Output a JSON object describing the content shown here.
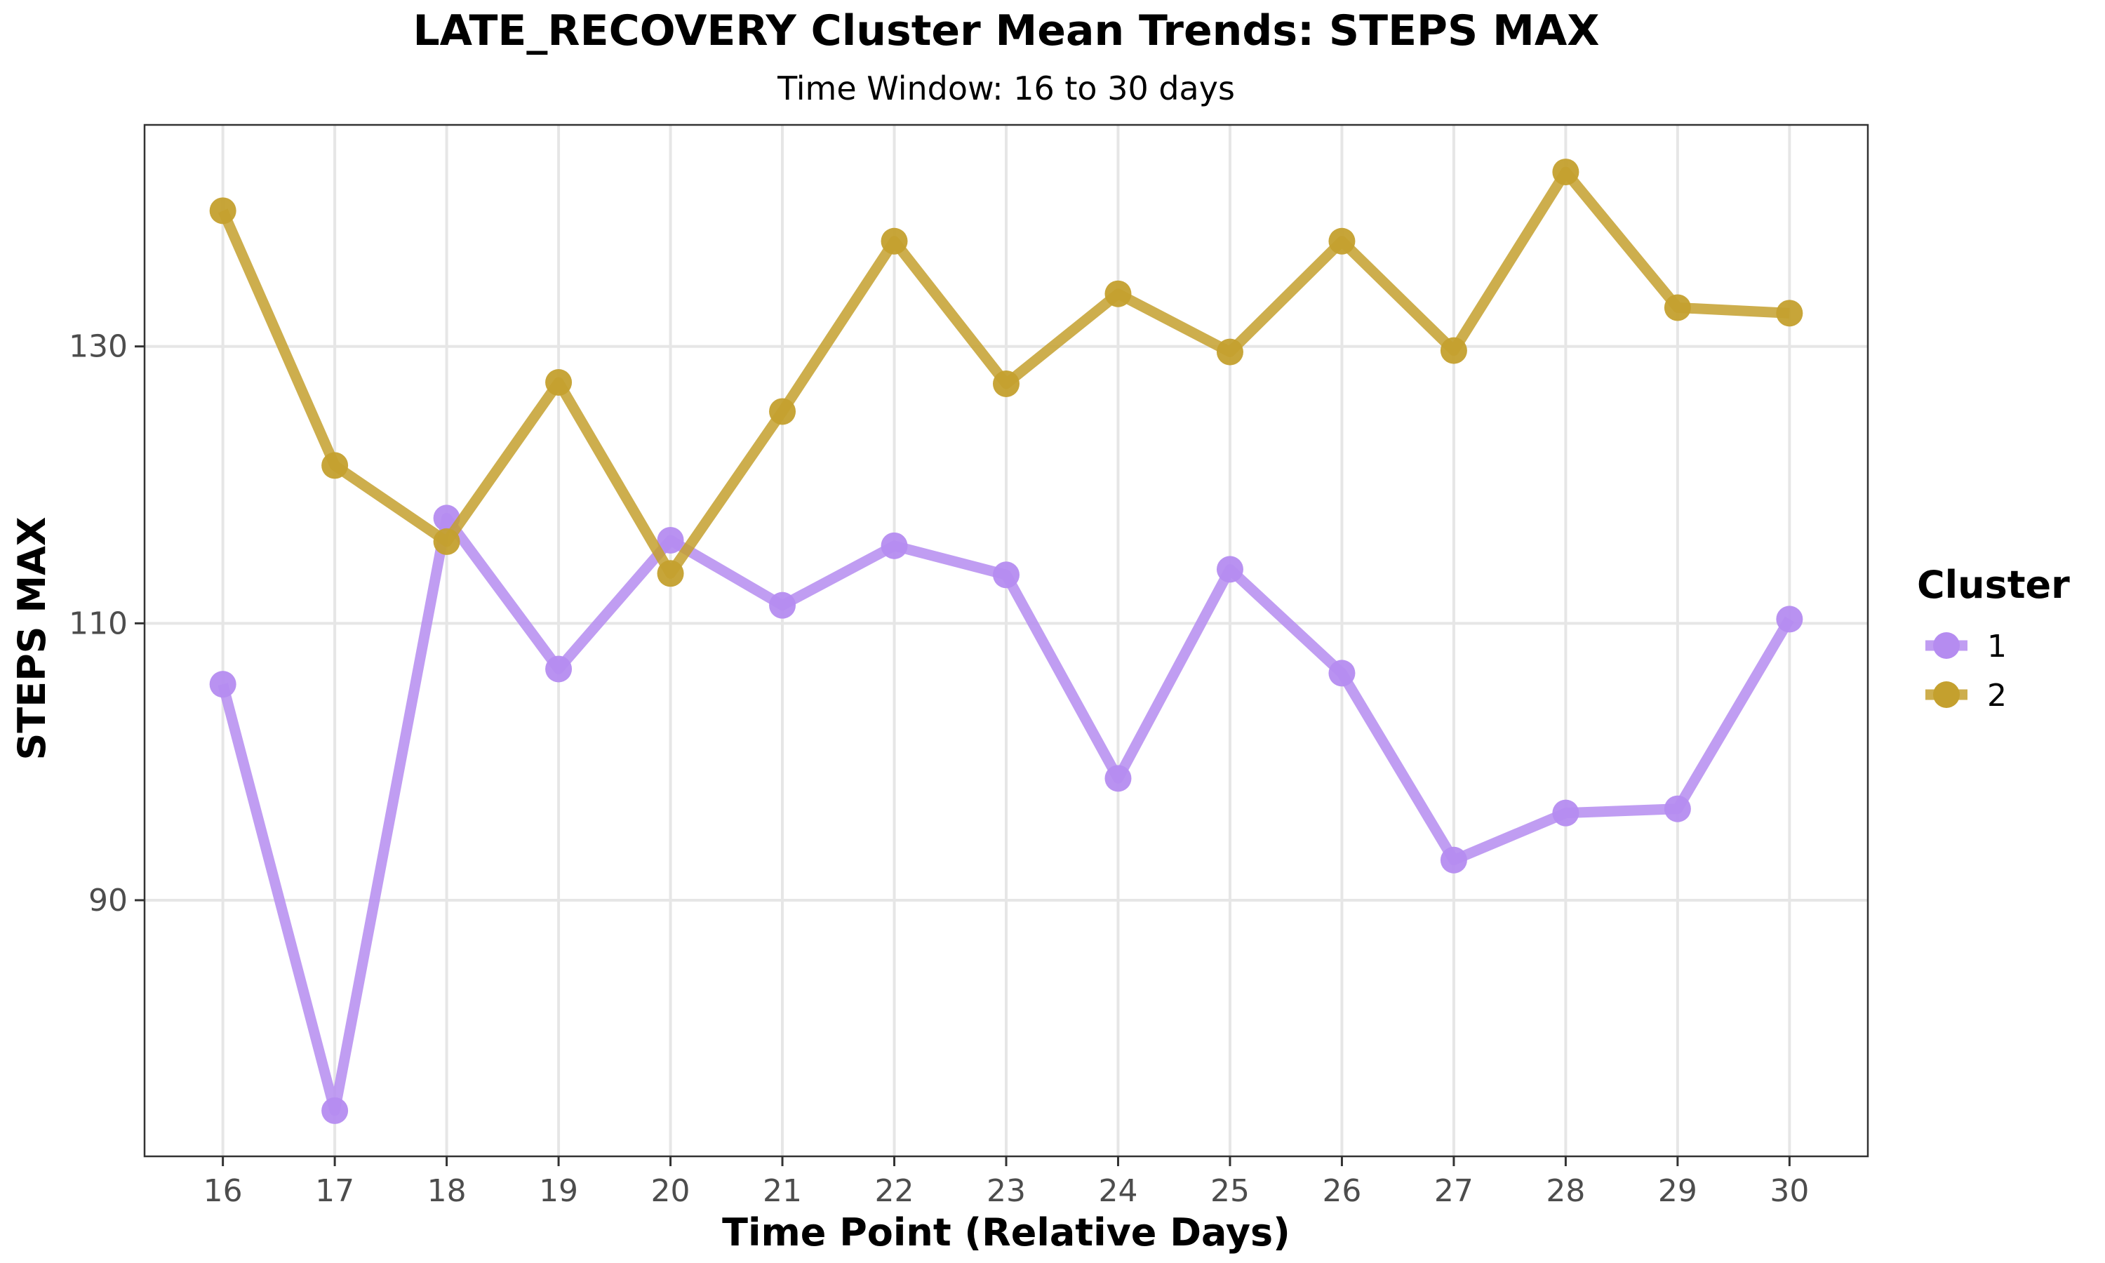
{
  "chart_data": {
    "type": "line",
    "title": "LATE_RECOVERY Cluster Mean Trends: STEPS MAX",
    "subtitle": "Time Window: 16 to 30 days",
    "xlabel": "Time Point (Relative Days)",
    "ylabel": "STEPS MAX",
    "x": [
      16,
      17,
      18,
      19,
      20,
      21,
      22,
      23,
      24,
      25,
      26,
      27,
      28,
      29,
      30
    ],
    "x_tick_labels": [
      "16",
      "17",
      "18",
      "19",
      "20",
      "21",
      "22",
      "23",
      "24",
      "25",
      "26",
      "27",
      "28",
      "29",
      "30"
    ],
    "y_ticks": [
      90,
      110,
      130
    ],
    "y_tick_labels": [
      "90",
      "110",
      "130"
    ],
    "xlim": [
      15.3,
      30.7
    ],
    "ylim": [
      71.5,
      146
    ],
    "grid": true,
    "legend": {
      "title": "Cluster",
      "placement": "right"
    },
    "series": [
      {
        "name": "1",
        "color": "#b58cf0",
        "values": [
          105.6,
          74.8,
          117.6,
          106.7,
          116.0,
          111.3,
          115.6,
          113.5,
          98.8,
          113.9,
          106.4,
          92.9,
          96.3,
          96.6,
          110.3
        ]
      },
      {
        "name": "2",
        "color": "#c4a02e",
        "values": [
          139.8,
          121.4,
          115.9,
          127.4,
          113.6,
          125.3,
          137.6,
          127.3,
          133.8,
          129.6,
          137.6,
          129.7,
          142.6,
          132.8,
          132.4
        ]
      }
    ]
  }
}
